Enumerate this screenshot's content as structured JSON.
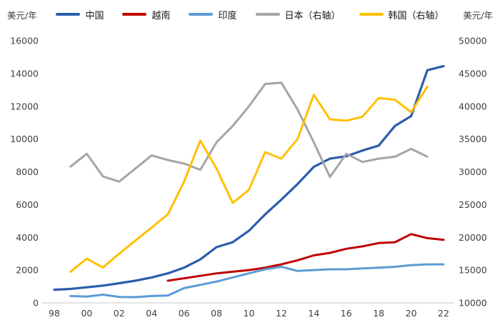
{
  "header": {
    "left_axis_unit": "美元/年",
    "right_axis_unit": "美元/年"
  },
  "legend": {
    "items": [
      {
        "key": "china",
        "label": "中国",
        "color": "#2B5DAC"
      },
      {
        "key": "vietnam",
        "label": "越南",
        "color": "#C00000"
      },
      {
        "key": "india",
        "label": "印度",
        "color": "#5B9BD5"
      },
      {
        "key": "japan",
        "label": "日本（右轴）",
        "color": "#A5A5A5"
      },
      {
        "key": "korea",
        "label": "韩国（右轴）",
        "color": "#FFC000"
      }
    ]
  },
  "chart_data": {
    "type": "line",
    "title": "",
    "grid": false,
    "legend_position": "top",
    "x_min": 1998,
    "x_max": 2022,
    "x_tick_years": [
      1998,
      2000,
      2002,
      2004,
      2006,
      2008,
      2010,
      2012,
      2014,
      2016,
      2018,
      2020,
      2022
    ],
    "x_tick_labels": [
      "98",
      "00",
      "02",
      "04",
      "06",
      "08",
      "10",
      "12",
      "14",
      "16",
      "18",
      "20",
      "22"
    ],
    "left_axis": {
      "label": "美元/年",
      "min": 0,
      "max": 16000,
      "step": 2000,
      "ticks": [
        0,
        2000,
        4000,
        6000,
        8000,
        10000,
        12000,
        14000,
        16000
      ]
    },
    "right_axis": {
      "label": "美元/年",
      "min": 10000,
      "max": 50000,
      "step": 5000,
      "ticks": [
        10000,
        15000,
        20000,
        25000,
        30000,
        35000,
        40000,
        45000,
        50000
      ]
    },
    "series": [
      {
        "name": "中国",
        "key": "china",
        "axis": "left",
        "color": "#2B5DAC",
        "width": 3.2,
        "start_year": 1998,
        "values": [
          800,
          850,
          950,
          1050,
          1200,
          1350,
          1550,
          1800,
          2150,
          2650,
          3400,
          3700,
          4400,
          5400,
          6300,
          7250,
          8300,
          8800,
          8950,
          9300,
          9600,
          10800,
          11400,
          14200,
          14450
        ]
      },
      {
        "name": "越南",
        "key": "vietnam",
        "axis": "left",
        "color": "#C00000",
        "width": 3,
        "start_year": 2005,
        "values": [
          1350,
          1500,
          1650,
          1800,
          1900,
          2000,
          2150,
          2350,
          2600,
          2900,
          3050,
          3300,
          3450,
          3650,
          3700,
          4200,
          3950,
          3850
        ]
      },
      {
        "name": "印度",
        "key": "india",
        "axis": "left",
        "color": "#5B9BD5",
        "width": 3,
        "start_year": 1999,
        "values": [
          420,
          380,
          500,
          360,
          350,
          420,
          450,
          900,
          1100,
          1300,
          1550,
          1800,
          2050,
          2200,
          1950,
          2000,
          2050,
          2050,
          2100,
          2150,
          2200,
          2300,
          2350,
          2350
        ]
      },
      {
        "name": "日本（右轴）",
        "key": "japan",
        "axis": "right",
        "color": "#A5A5A5",
        "width": 3,
        "start_year": 1999,
        "values": [
          30800,
          32750,
          29300,
          28500,
          30500,
          32500,
          31800,
          31250,
          30300,
          34500,
          37000,
          40000,
          43400,
          43600,
          39500,
          34500,
          29200,
          32750,
          31500,
          32000,
          32300,
          33500,
          32300
        ]
      },
      {
        "name": "韩国（右轴）",
        "key": "korea",
        "axis": "right",
        "color": "#FFC000",
        "width": 3,
        "start_year": 1999,
        "values": [
          14750,
          16750,
          15400,
          17500,
          19500,
          21500,
          23500,
          28500,
          34750,
          30500,
          25250,
          27250,
          33000,
          32000,
          35000,
          41750,
          38000,
          37800,
          38400,
          41250,
          41000,
          39100,
          43000
        ]
      }
    ]
  }
}
